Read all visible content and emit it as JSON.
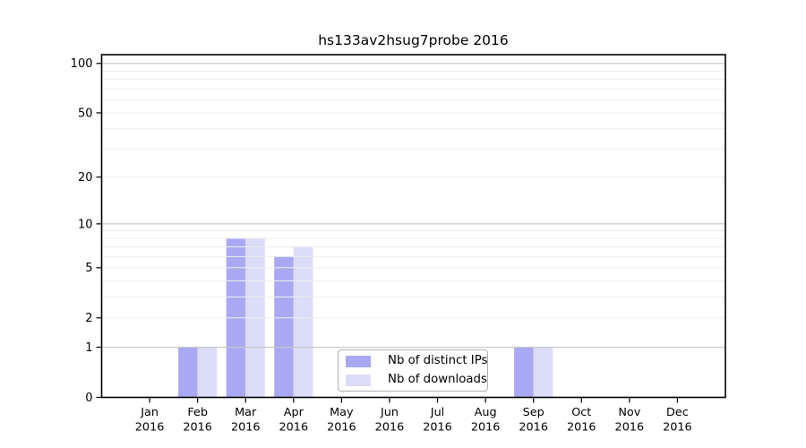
{
  "chart_data": {
    "type": "bar",
    "title": "hs133av2hsug7probe 2016",
    "categories": [
      "Jan 2016",
      "Feb 2016",
      "Mar 2016",
      "Apr 2016",
      "May 2016",
      "Jun 2016",
      "Jul 2016",
      "Aug 2016",
      "Sep 2016",
      "Oct 2016",
      "Nov 2016",
      "Dec 2016"
    ],
    "months": [
      {
        "month": "Jan",
        "year": "2016"
      },
      {
        "month": "Feb",
        "year": "2016"
      },
      {
        "month": "Mar",
        "year": "2016"
      },
      {
        "month": "Apr",
        "year": "2016"
      },
      {
        "month": "May",
        "year": "2016"
      },
      {
        "month": "Jun",
        "year": "2016"
      },
      {
        "month": "Jul",
        "year": "2016"
      },
      {
        "month": "Aug",
        "year": "2016"
      },
      {
        "month": "Sep",
        "year": "2016"
      },
      {
        "month": "Oct",
        "year": "2016"
      },
      {
        "month": "Nov",
        "year": "2016"
      },
      {
        "month": "Dec",
        "year": "2016"
      }
    ],
    "series": [
      {
        "name": "Nb of distinct IPs",
        "color": "#a9a9f3",
        "values": [
          0,
          1,
          8,
          6,
          0,
          0,
          0,
          0,
          1,
          0,
          0,
          0
        ]
      },
      {
        "name": "Nb of downloads",
        "color": "#dcdcf8",
        "values": [
          0,
          1,
          8,
          7,
          0,
          0,
          0,
          0,
          1,
          0,
          0,
          0
        ]
      }
    ],
    "xlabel": "",
    "ylabel": "",
    "y_scale": "log10(1+x)",
    "y_ticks": [
      0,
      1,
      2,
      5,
      10,
      20,
      50,
      100
    ],
    "y_major_gridlines": [
      1,
      10,
      100
    ],
    "y_minor_gridlines": [
      2,
      3,
      4,
      5,
      6,
      7,
      8,
      9,
      20,
      30,
      40,
      50,
      60,
      70,
      80,
      90
    ],
    "ylim": [
      0,
      113
    ],
    "grid": true,
    "legend_position": "lower center",
    "colors": {
      "axis": "#000000",
      "text": "#000000",
      "major_grid": "#c6c6c6",
      "minor_grid": "#ededed",
      "legend_border": "#b0b0b0",
      "background": "#ffffff"
    }
  }
}
